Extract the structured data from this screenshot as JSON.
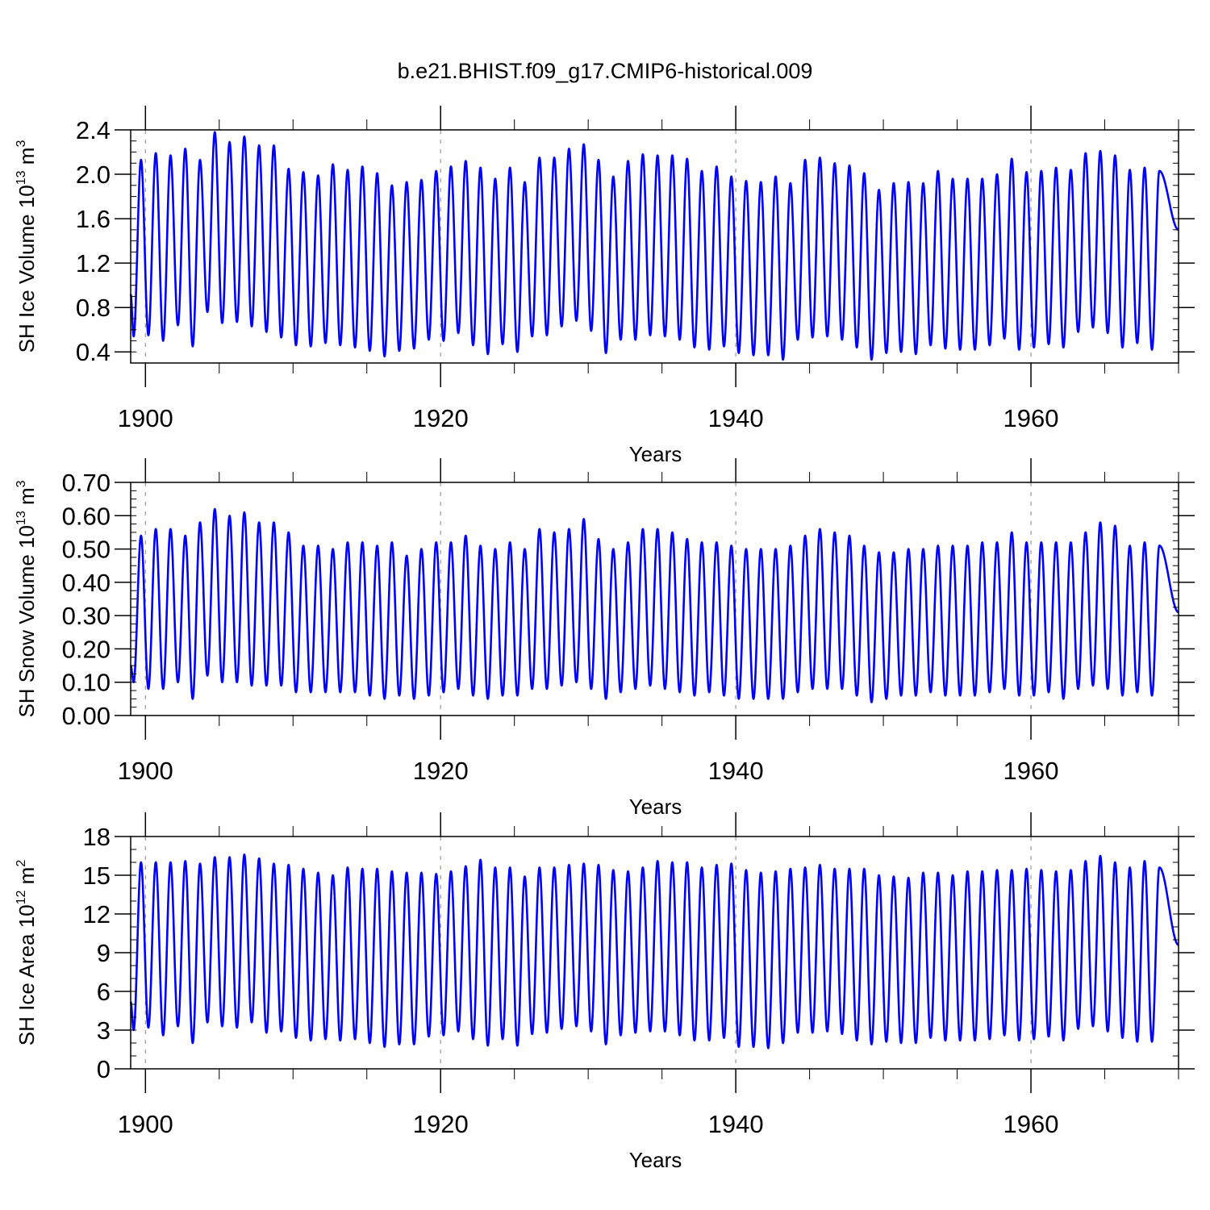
{
  "figure": {
    "title": "b.e21.BHIST.f09_g17.CMIP6-historical.009",
    "line_color": "#0000ff",
    "axis_color": "#000000",
    "grid_color": "#9a9a9a"
  },
  "chart_data": [
    {
      "type": "line",
      "name": "sh-ice-volume",
      "ylabel_main": "SH Ice Volume 10",
      "ylabel_exp": "13",
      "ylabel_unit": " m",
      "ylabel_unit_exp": "3",
      "xlabel": "Years",
      "xlim": [
        1899,
        1970
      ],
      "ylim": [
        0.3,
        2.4
      ],
      "yticks": [
        0.4,
        0.8,
        1.2,
        1.6,
        2.0,
        2.4
      ],
      "ytick_labels": [
        "0.4",
        "0.8",
        "1.2",
        "1.6",
        "2.0",
        "2.4"
      ],
      "yminor_step": 0.1,
      "xticks": [
        1900,
        1920,
        1940,
        1960
      ],
      "xtick_labels": [
        "1900",
        "1920",
        "1940",
        "1960"
      ],
      "xminor_step": 5,
      "series_x_start": 1899.0,
      "min_phase": 0.2,
      "max_phase": 0.7,
      "start_value": 0.92,
      "end_value": 1.5,
      "annual_max": [
        2.13,
        2.19,
        2.17,
        2.23,
        2.13,
        2.38,
        2.29,
        2.34,
        2.26,
        2.26,
        2.05,
        2.02,
        1.99,
        2.09,
        2.04,
        2.07,
        2.01,
        1.9,
        1.93,
        1.95,
        2.03,
        2.07,
        2.12,
        2.06,
        1.96,
        2.06,
        1.93,
        2.15,
        2.15,
        2.23,
        2.27,
        2.13,
        1.98,
        2.12,
        2.18,
        2.17,
        2.17,
        2.14,
        2.03,
        2.07,
        1.98,
        1.94,
        1.93,
        1.98,
        1.92,
        2.13,
        2.15,
        2.1,
        2.08,
        2.01,
        1.86,
        1.92,
        1.93,
        1.92,
        2.03,
        1.96,
        1.96,
        1.96,
        2.0,
        2.14,
        2.02,
        2.03,
        2.06,
        2.04,
        2.19,
        2.21,
        2.17,
        2.04,
        2.06,
        2.03
      ],
      "annual_min": [
        0.54,
        0.55,
        0.5,
        0.64,
        0.45,
        0.76,
        0.66,
        0.67,
        0.63,
        0.58,
        0.53,
        0.46,
        0.45,
        0.48,
        0.46,
        0.44,
        0.41,
        0.36,
        0.41,
        0.43,
        0.51,
        0.5,
        0.57,
        0.46,
        0.38,
        0.47,
        0.4,
        0.54,
        0.55,
        0.63,
        0.68,
        0.59,
        0.39,
        0.51,
        0.51,
        0.55,
        0.54,
        0.51,
        0.44,
        0.42,
        0.45,
        0.39,
        0.37,
        0.37,
        0.33,
        0.51,
        0.53,
        0.54,
        0.51,
        0.44,
        0.33,
        0.39,
        0.4,
        0.38,
        0.46,
        0.43,
        0.42,
        0.42,
        0.46,
        0.52,
        0.42,
        0.44,
        0.47,
        0.44,
        0.58,
        0.62,
        0.57,
        0.44,
        0.48,
        0.42
      ]
    },
    {
      "type": "line",
      "name": "sh-snow-volume",
      "ylabel_main": "SH Snow Volume 10",
      "ylabel_exp": "13",
      "ylabel_unit": " m",
      "ylabel_unit_exp": "3",
      "xlabel": "Years",
      "xlim": [
        1899,
        1970
      ],
      "ylim": [
        0.0,
        0.7
      ],
      "yticks": [
        0.0,
        0.1,
        0.2,
        0.3,
        0.4,
        0.5,
        0.6,
        0.7
      ],
      "ytick_labels": [
        "0.00",
        "0.10",
        "0.20",
        "0.30",
        "0.40",
        "0.50",
        "0.60",
        "0.70"
      ],
      "yminor_step": 0.025,
      "xticks": [
        1900,
        1920,
        1940,
        1960
      ],
      "xtick_labels": [
        "1900",
        "1920",
        "1940",
        "1960"
      ],
      "xminor_step": 5,
      "series_x_start": 1899.0,
      "min_phase": 0.2,
      "max_phase": 0.7,
      "start_value": 0.15,
      "end_value": 0.31,
      "annual_max": [
        0.54,
        0.56,
        0.56,
        0.54,
        0.58,
        0.62,
        0.6,
        0.61,
        0.58,
        0.58,
        0.55,
        0.51,
        0.51,
        0.5,
        0.52,
        0.52,
        0.51,
        0.52,
        0.48,
        0.5,
        0.52,
        0.52,
        0.54,
        0.51,
        0.5,
        0.52,
        0.5,
        0.56,
        0.55,
        0.56,
        0.59,
        0.53,
        0.5,
        0.52,
        0.56,
        0.56,
        0.55,
        0.53,
        0.52,
        0.52,
        0.51,
        0.5,
        0.5,
        0.5,
        0.51,
        0.54,
        0.56,
        0.55,
        0.54,
        0.51,
        0.49,
        0.49,
        0.5,
        0.5,
        0.51,
        0.51,
        0.51,
        0.52,
        0.52,
        0.55,
        0.52,
        0.52,
        0.52,
        0.52,
        0.55,
        0.58,
        0.57,
        0.51,
        0.52,
        0.51
      ],
      "annual_min": [
        0.1,
        0.08,
        0.08,
        0.1,
        0.05,
        0.12,
        0.1,
        0.1,
        0.09,
        0.09,
        0.09,
        0.07,
        0.07,
        0.07,
        0.07,
        0.07,
        0.06,
        0.05,
        0.06,
        0.05,
        0.06,
        0.07,
        0.08,
        0.06,
        0.05,
        0.06,
        0.06,
        0.08,
        0.08,
        0.09,
        0.1,
        0.08,
        0.05,
        0.07,
        0.08,
        0.09,
        0.08,
        0.07,
        0.06,
        0.07,
        0.06,
        0.05,
        0.05,
        0.05,
        0.05,
        0.07,
        0.08,
        0.08,
        0.08,
        0.06,
        0.04,
        0.05,
        0.06,
        0.06,
        0.07,
        0.06,
        0.06,
        0.06,
        0.07,
        0.08,
        0.06,
        0.06,
        0.07,
        0.05,
        0.08,
        0.09,
        0.08,
        0.06,
        0.07,
        0.06
      ]
    },
    {
      "type": "line",
      "name": "sh-ice-area",
      "ylabel_main": "SH Ice Area 10",
      "ylabel_exp": "12",
      "ylabel_unit": " m",
      "ylabel_unit_exp": "2",
      "xlabel": "Years",
      "xlim": [
        1899,
        1970
      ],
      "ylim": [
        0,
        18
      ],
      "yticks": [
        0,
        3,
        6,
        9,
        12,
        15,
        18
      ],
      "ytick_labels": [
        "0",
        "3",
        "6",
        "9",
        "12",
        "15",
        "18"
      ],
      "yminor_step": 1,
      "xticks": [
        1900,
        1920,
        1940,
        1960
      ],
      "xtick_labels": [
        "1900",
        "1920",
        "1940",
        "1960"
      ],
      "xminor_step": 5,
      "series_x_start": 1899.0,
      "min_phase": 0.2,
      "max_phase": 0.7,
      "start_value": 5.2,
      "end_value": 9.6,
      "annual_max": [
        16.0,
        16.0,
        16.0,
        16.1,
        15.9,
        16.4,
        16.4,
        16.6,
        16.3,
        15.9,
        15.8,
        15.5,
        15.2,
        15.0,
        15.6,
        15.5,
        15.5,
        15.3,
        15.2,
        15.2,
        15.1,
        15.3,
        15.7,
        16.2,
        15.6,
        15.6,
        14.9,
        15.6,
        15.6,
        15.8,
        15.9,
        15.8,
        15.4,
        15.3,
        15.6,
        16.1,
        16.0,
        16.0,
        15.6,
        15.8,
        15.9,
        15.4,
        15.2,
        15.3,
        15.5,
        15.6,
        15.8,
        15.5,
        15.5,
        15.5,
        15.0,
        14.9,
        14.8,
        15.2,
        15.2,
        15.0,
        15.3,
        15.3,
        15.4,
        15.4,
        15.5,
        15.4,
        15.3,
        15.4,
        16.1,
        16.5,
        16.0,
        15.6,
        16.1,
        15.6
      ],
      "annual_min": [
        3.0,
        3.2,
        2.6,
        3.3,
        2.0,
        3.6,
        3.3,
        3.2,
        3.6,
        2.8,
        2.9,
        2.4,
        2.2,
        2.3,
        2.2,
        2.3,
        2.0,
        1.7,
        1.9,
        1.9,
        2.5,
        2.6,
        2.9,
        2.3,
        1.8,
        2.3,
        1.8,
        2.7,
        2.8,
        3.1,
        3.3,
        2.9,
        1.9,
        2.6,
        2.8,
        2.9,
        2.9,
        2.6,
        2.2,
        2.2,
        2.4,
        1.7,
        1.7,
        1.6,
        2.0,
        2.8,
        2.8,
        2.9,
        2.7,
        2.2,
        1.9,
        2.1,
        2.0,
        2.0,
        2.4,
        2.2,
        2.2,
        2.2,
        2.3,
        2.6,
        2.2,
        2.3,
        2.5,
        2.2,
        3.1,
        3.3,
        2.9,
        2.4,
        2.1,
        2.1
      ]
    }
  ]
}
